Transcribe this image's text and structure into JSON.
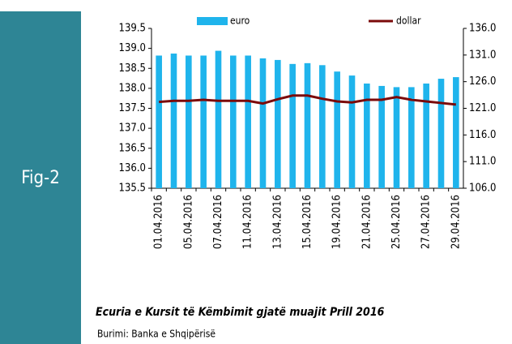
{
  "figure_label": "Fig-2",
  "caption": "Ecuria e Kursit të Këmbimit gjatë muajit Prill 2016",
  "source": "Burimi: Banka e Shqipërisë",
  "chart_data": {
    "type": "bar+line",
    "categories": [
      "01.04.2016",
      null,
      "05.04.2016",
      null,
      "07.04.2016",
      null,
      "11.04.2016",
      null,
      "13.04.2016",
      null,
      "15.04.2016",
      null,
      "19.04.2016",
      null,
      "21.04.2016",
      null,
      "25.04.2016",
      null,
      "27.04.2016",
      null,
      "29.04.2016"
    ],
    "series": [
      {
        "name": "euro",
        "color": "#1fb4ec",
        "type": "bar",
        "axis": "y",
        "values": [
          138.82,
          138.87,
          138.82,
          138.82,
          138.94,
          138.82,
          138.82,
          138.75,
          138.71,
          138.61,
          138.63,
          138.58,
          138.42,
          138.32,
          138.12,
          138.06,
          138.03,
          138.03,
          138.12,
          138.24,
          138.28
        ]
      },
      {
        "name": "dollar",
        "color": "#7b0a0a",
        "type": "line",
        "axis": "y2",
        "values": [
          122.2,
          122.4,
          122.4,
          122.6,
          122.4,
          122.4,
          122.4,
          121.9,
          122.7,
          123.4,
          123.4,
          122.8,
          122.3,
          122.1,
          122.6,
          122.6,
          123.1,
          122.6,
          122.3,
          122.0,
          121.7
        ]
      }
    ],
    "ylim": [
      135.5,
      139.5
    ],
    "yticks": [
      135.5,
      {
        "value": 136.0,
        "label": "136.0"
      },
      136.5,
      {
        "value": 137.0,
        "label": "137.0"
      },
      137.5,
      {
        "value": 138.0,
        "label": "138.0"
      },
      138.5,
      {
        "value": 139.0,
        "label": "139.0"
      },
      139.5
    ],
    "y2lim": [
      106,
      136
    ],
    "y2ticks": [
      {
        "value": 106,
        "label": "106.0"
      },
      {
        "value": 111,
        "label": "111.0"
      },
      {
        "value": 116,
        "label": "116.0"
      },
      {
        "value": 121,
        "label": "121.0"
      },
      {
        "value": 126,
        "label": "126.0"
      },
      {
        "value": 131,
        "label": "131.0"
      },
      {
        "value": 136,
        "label": "136.0"
      }
    ],
    "legend": "top"
  }
}
